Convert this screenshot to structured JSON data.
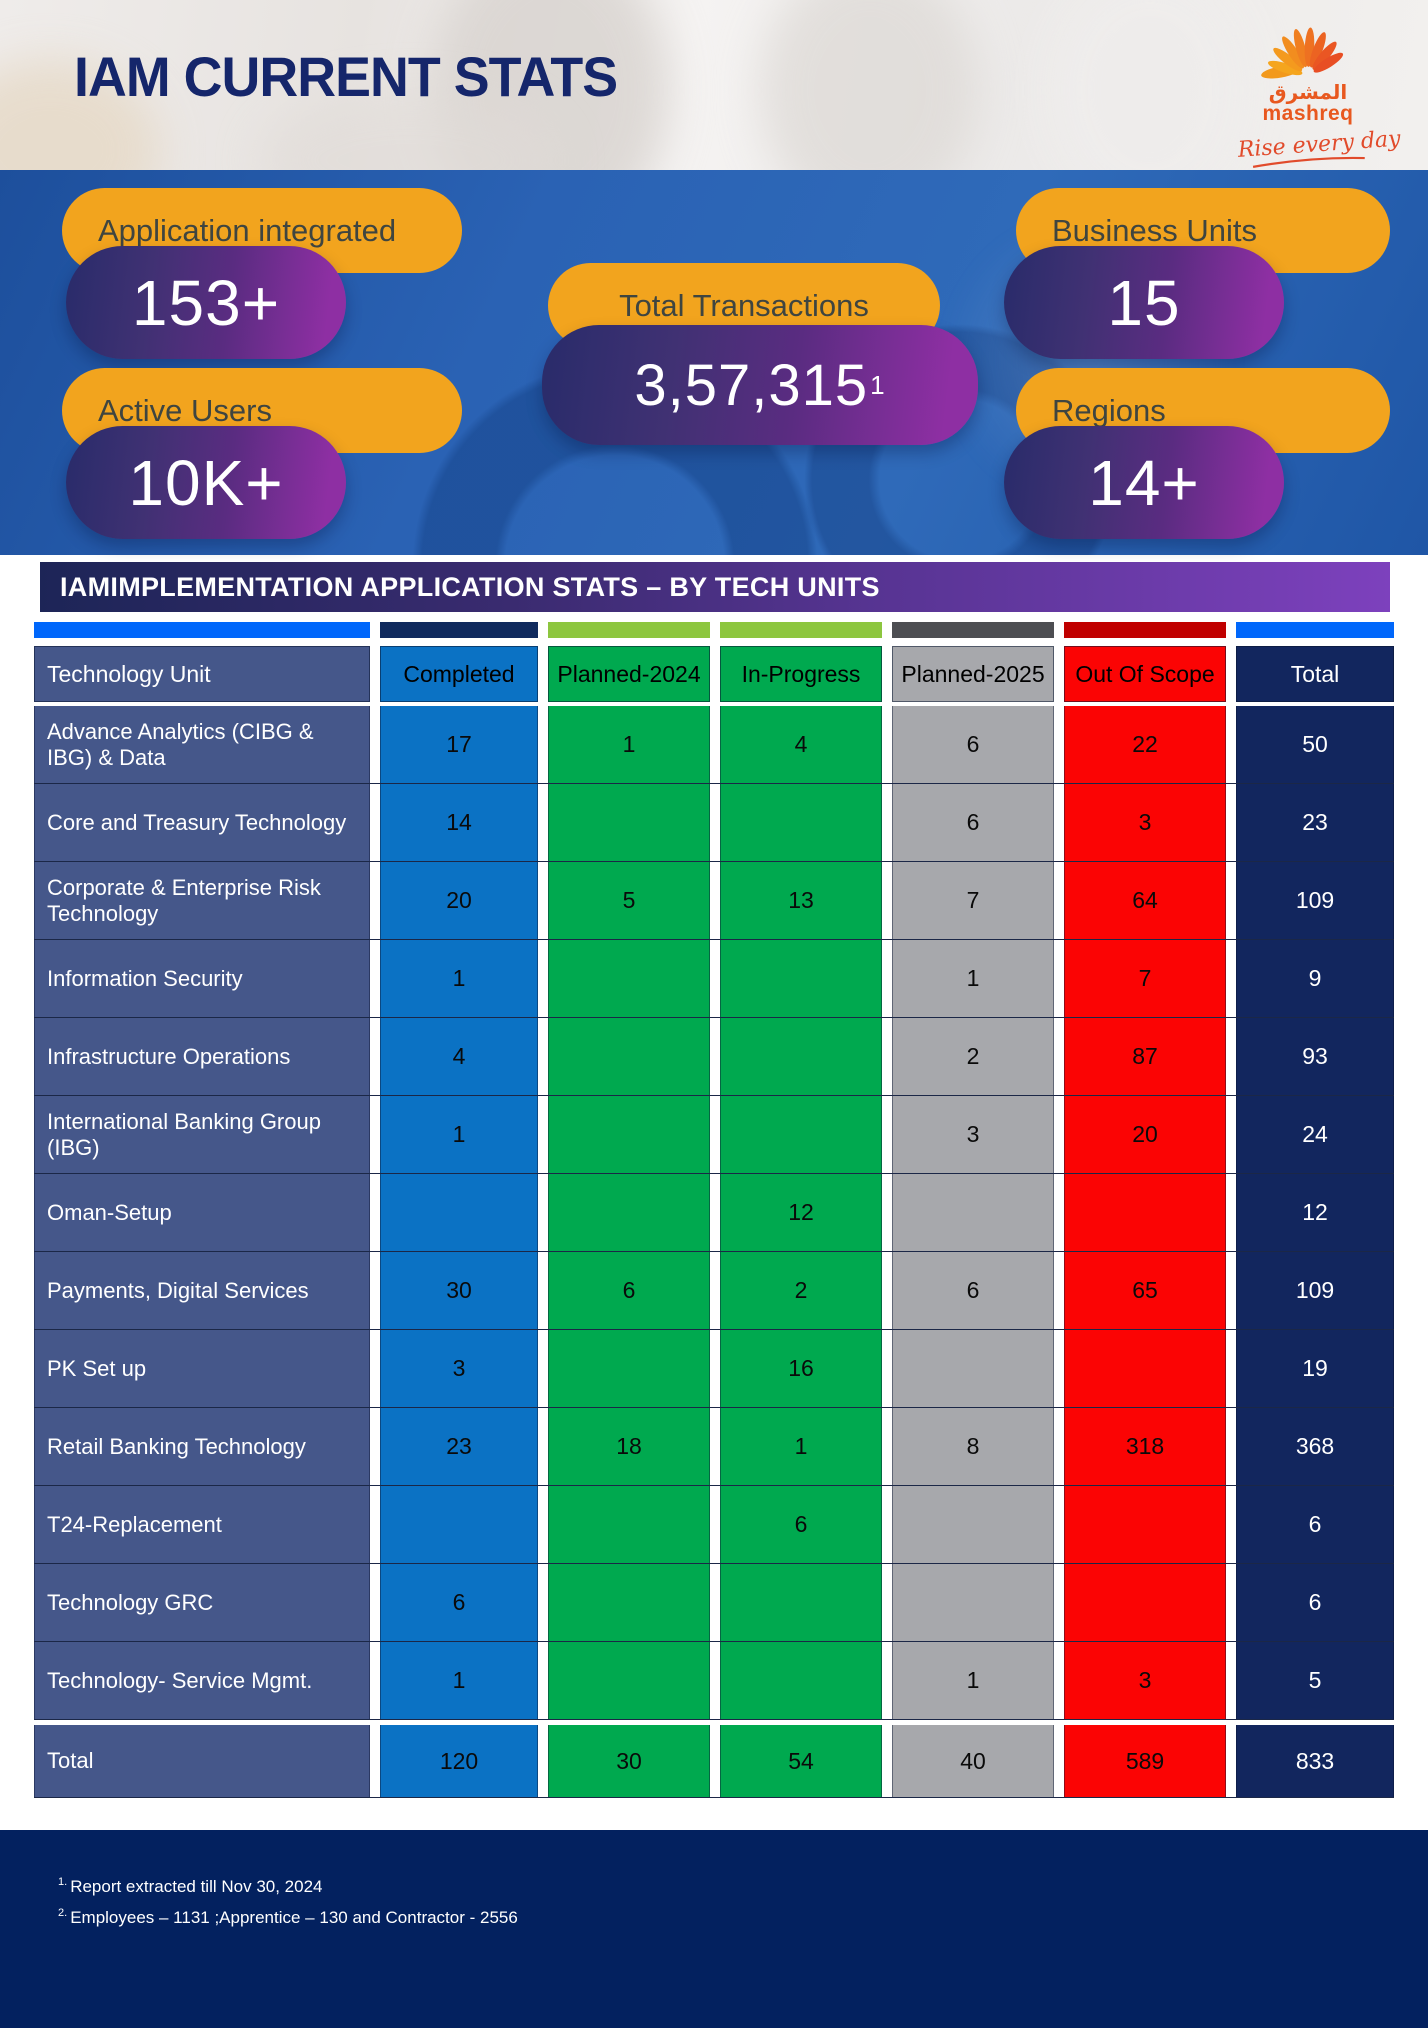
{
  "header": {
    "title": "IAM CURRENT STATS"
  },
  "logo": {
    "arabic_wordmark": "المشرق",
    "brand_name": "mashreq",
    "tagline": "Rise every day"
  },
  "stats": {
    "application_integrated": {
      "label": "Application integrated",
      "value": "153+"
    },
    "active_users": {
      "label": "Active Users",
      "value": "10K+"
    },
    "total_transactions": {
      "label": "Total Transactions",
      "value": "3,57,315",
      "footnote_ref": "1"
    },
    "business_units": {
      "label": "Business Units",
      "value": "15"
    },
    "regions": {
      "label": "Regions",
      "value": "14+"
    }
  },
  "table": {
    "title": "IAMIMPLEMENTATION APPLICATION STATS – BY TECH UNITS",
    "columns": [
      "Technology Unit",
      "Completed",
      "Planned-2024",
      "In-Progress",
      "Planned-2025",
      "Out Of Scope",
      "Total"
    ],
    "rows": [
      {
        "unit": "Advance Analytics (CIBG & IBG) & Data",
        "values": [
          "17",
          "1",
          "4",
          "6",
          "22",
          "50"
        ]
      },
      {
        "unit": "Core and Treasury Technology",
        "values": [
          "14",
          "",
          "",
          "6",
          "3",
          "23"
        ]
      },
      {
        "unit": "Corporate & Enterprise Risk Technology",
        "values": [
          "20",
          "5",
          "13",
          "7",
          "64",
          "109"
        ]
      },
      {
        "unit": "Information Security",
        "values": [
          "1",
          "",
          "",
          "1",
          "7",
          "9"
        ]
      },
      {
        "unit": "Infrastructure Operations",
        "values": [
          "4",
          "",
          "",
          "2",
          "87",
          "93"
        ]
      },
      {
        "unit": "International Banking Group (IBG)",
        "values": [
          "1",
          "",
          "",
          "3",
          "20",
          "24"
        ]
      },
      {
        "unit": "Oman-Setup",
        "values": [
          "",
          "",
          "12",
          "",
          "",
          "12"
        ]
      },
      {
        "unit": "Payments, Digital Services",
        "values": [
          "30",
          "6",
          "2",
          "6",
          "65",
          "109"
        ]
      },
      {
        "unit": "PK Set up",
        "values": [
          "3",
          "",
          "16",
          "",
          "",
          "19"
        ]
      },
      {
        "unit": "Retail Banking Technology",
        "values": [
          "23",
          "18",
          "1",
          "8",
          "318",
          "368"
        ]
      },
      {
        "unit": "T24-Replacement",
        "values": [
          "",
          "",
          "6",
          "",
          "",
          "6"
        ]
      },
      {
        "unit": "Technology GRC",
        "values": [
          "6",
          "",
          "",
          "",
          "",
          "6"
        ]
      },
      {
        "unit": "Technology- Service Mgmt.",
        "values": [
          "1",
          "",
          "",
          "1",
          "3",
          "5"
        ]
      }
    ],
    "total_row": {
      "unit": "Total",
      "values": [
        "120",
        "30",
        "54",
        "40",
        "589",
        "833"
      ]
    }
  },
  "footnotes": [
    {
      "ref": "1.",
      "text": "Report extracted till Nov 30, 2024"
    },
    {
      "ref": "2.",
      "text": "Employees – 1131 ;Apprentice – 130 and Contractor - 2556"
    }
  ],
  "colors": {
    "title_navy": "#15266b",
    "orange_pill": "#f2a41e",
    "purple_pill_start": "#2b2c6b",
    "purple_pill_end": "#8e2fa3",
    "blue_band": "#2a62b4",
    "completed_blue": "#0b72c4",
    "progress_green": "#00a94f",
    "planned_gray": "#a7a8ac",
    "out_of_scope_red": "#fb0404",
    "total_navy": "#12265e",
    "unit_slate": "#45578a",
    "footer_navy": "#03215f",
    "strip_bright_blue": "#0067fb",
    "strip_green": "#8dc63f",
    "strip_dark_red": "#c00000",
    "strip_dark_gray": "#4d4e52"
  },
  "chart_data": {
    "type": "table",
    "title": "IAM IMPLEMENTATION APPLICATION STATS – BY TECH UNITS",
    "columns": [
      "Technology Unit",
      "Completed",
      "Planned-2024",
      "In-Progress",
      "Planned-2025",
      "Out Of Scope",
      "Total"
    ],
    "rows": [
      [
        "Advance Analytics (CIBG & IBG) & Data",
        17,
        1,
        4,
        6,
        22,
        50
      ],
      [
        "Core and Treasury Technology",
        14,
        null,
        null,
        6,
        3,
        23
      ],
      [
        "Corporate & Enterprise Risk Technology",
        20,
        5,
        13,
        7,
        64,
        109
      ],
      [
        "Information Security",
        1,
        null,
        null,
        1,
        7,
        9
      ],
      [
        "Infrastructure Operations",
        4,
        null,
        null,
        2,
        87,
        93
      ],
      [
        "International Banking Group (IBG)",
        1,
        null,
        null,
        3,
        20,
        24
      ],
      [
        "Oman-Setup",
        null,
        null,
        12,
        null,
        null,
        12
      ],
      [
        "Payments, Digital Services",
        30,
        6,
        2,
        6,
        65,
        109
      ],
      [
        "PK Set up",
        3,
        null,
        16,
        null,
        null,
        19
      ],
      [
        "Retail Banking Technology",
        23,
        18,
        1,
        8,
        318,
        368
      ],
      [
        "T24-Replacement",
        null,
        null,
        6,
        null,
        null,
        6
      ],
      [
        "Technology GRC",
        6,
        null,
        null,
        null,
        null,
        6
      ],
      [
        "Technology- Service Mgmt.",
        1,
        null,
        null,
        1,
        3,
        5
      ],
      [
        "Total",
        120,
        30,
        54,
        40,
        589,
        833
      ]
    ],
    "kpis": [
      {
        "label": "Application integrated",
        "value": "153+"
      },
      {
        "label": "Active Users",
        "value": "10K+"
      },
      {
        "label": "Total Transactions",
        "value": "3,57,315"
      },
      {
        "label": "Business Units",
        "value": "15"
      },
      {
        "label": "Regions",
        "value": "14+"
      }
    ]
  }
}
